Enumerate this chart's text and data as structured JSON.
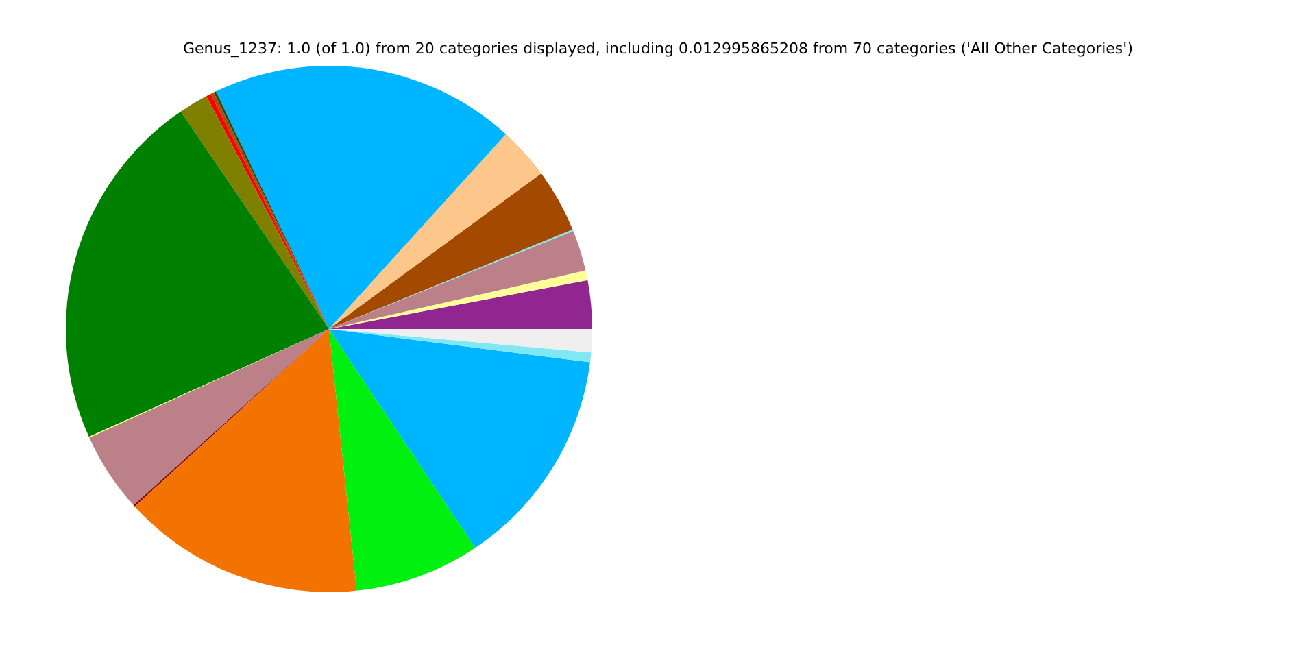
{
  "chart_data": {
    "type": "pie",
    "title": "Genus_1237: 1.0 (of 1.0) from 20 categories displayed, including 0.012995865208 from 70 categories ('All Other Categories')",
    "categories": [
      null,
      null,
      null,
      null,
      null,
      null,
      null,
      null,
      null,
      null,
      null,
      null,
      null,
      null,
      null,
      null,
      null,
      null,
      null,
      null
    ],
    "values": [
      2.97,
      0.6,
      2.5,
      0.1,
      3.9,
      3.2,
      18.8,
      0.15,
      0.2,
      0.3,
      1.8,
      22.2,
      0.06,
      4.9,
      0.1,
      14.9,
      7.7,
      13.6,
      0.6,
      1.42
    ],
    "colors": [
      "#922690",
      "#ffff99",
      "#bc8089",
      "#7ee6f0",
      "#a34900",
      "#fdc78b",
      "#00b5ff",
      "#2a4a10",
      "#a3500d",
      "#ff0000",
      "#808000",
      "#008000",
      "#ffff80",
      "#bc8089",
      "#800000",
      "#f27302",
      "#00f00f",
      "#00b5ff",
      "#80e8f5",
      "#efefef"
    ],
    "legend": false
  }
}
